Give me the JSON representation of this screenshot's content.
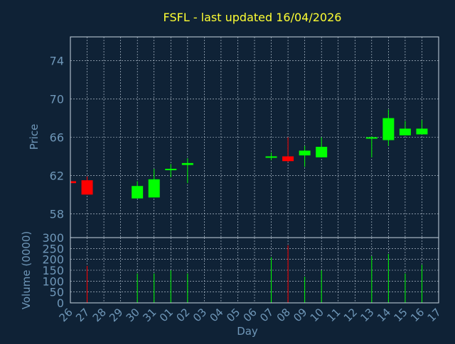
{
  "colors": {
    "background": "#0f2236",
    "frame": "#c9d6e3",
    "grid": "#c9d6e3",
    "title": "#ffff33",
    "axis_text": "#6f97b8",
    "up": "#00ff00",
    "down": "#ff0000"
  },
  "chart_data": {
    "type": "candlestick",
    "title": "FSFL - last updated 16/04/2026",
    "xlabel": "Day",
    "grid": true,
    "x": [
      "26",
      "27",
      "28",
      "29",
      "30",
      "31",
      "01",
      "02",
      "03",
      "04",
      "05",
      "06",
      "07",
      "08",
      "09",
      "10",
      "11",
      "12",
      "13",
      "14",
      "15",
      "16",
      "17"
    ],
    "price_panel": {
      "ylabel": "Price",
      "ylim": [
        55.5,
        76.5
      ],
      "yticks": [
        58,
        62,
        66,
        70,
        74
      ],
      "candles": [
        {
          "day": "26",
          "open": 61.4,
          "high": 61.4,
          "low": 61.2,
          "close": 61.2,
          "dir": "down"
        },
        {
          "day": "27",
          "open": 61.5,
          "high": 61.9,
          "low": 60.0,
          "close": 60.0,
          "dir": "down"
        },
        {
          "day": "30",
          "open": 59.6,
          "high": 61.4,
          "low": 59.6,
          "close": 60.9,
          "dir": "up"
        },
        {
          "day": "31",
          "open": 59.7,
          "high": 62.7,
          "low": 59.7,
          "close": 61.6,
          "dir": "up"
        },
        {
          "day": "01",
          "open": 62.6,
          "high": 63.2,
          "low": 61.8,
          "close": 62.7,
          "dir": "up"
        },
        {
          "day": "02",
          "open": 63.1,
          "high": 63.8,
          "low": 61.2,
          "close": 63.3,
          "dir": "up"
        },
        {
          "day": "07",
          "open": 63.9,
          "high": 64.4,
          "low": 63.6,
          "close": 64.0,
          "dir": "up"
        },
        {
          "day": "08",
          "open": 64.0,
          "high": 66.0,
          "low": 63.4,
          "close": 63.5,
          "dir": "down"
        },
        {
          "day": "09",
          "open": 64.1,
          "high": 65.1,
          "low": 62.9,
          "close": 64.6,
          "dir": "up"
        },
        {
          "day": "10",
          "open": 63.9,
          "high": 66.0,
          "low": 63.9,
          "close": 65.0,
          "dir": "up"
        },
        {
          "day": "13",
          "open": 65.9,
          "high": 66.1,
          "low": 63.9,
          "close": 66.0,
          "dir": "up"
        },
        {
          "day": "14",
          "open": 65.7,
          "high": 68.9,
          "low": 65.1,
          "close": 68.0,
          "dir": "up"
        },
        {
          "day": "15",
          "open": 66.2,
          "high": 67.7,
          "low": 66.2,
          "close": 66.9,
          "dir": "up"
        },
        {
          "day": "16",
          "open": 66.3,
          "high": 67.8,
          "low": 66.3,
          "close": 66.9,
          "dir": "up"
        }
      ]
    },
    "volume_panel": {
      "ylabel": "Volume (0000)",
      "ylim": [
        0,
        300
      ],
      "yticks": [
        0,
        50,
        100,
        150,
        200,
        250,
        300
      ],
      "bars": [
        {
          "day": "27",
          "value": 170,
          "dir": "down"
        },
        {
          "day": "30",
          "value": 135,
          "dir": "up"
        },
        {
          "day": "31",
          "value": 135,
          "dir": "up"
        },
        {
          "day": "01",
          "value": 150,
          "dir": "up"
        },
        {
          "day": "02",
          "value": 135,
          "dir": "up"
        },
        {
          "day": "07",
          "value": 210,
          "dir": "up"
        },
        {
          "day": "08",
          "value": 265,
          "dir": "down"
        },
        {
          "day": "09",
          "value": 120,
          "dir": "up"
        },
        {
          "day": "10",
          "value": 150,
          "dir": "up"
        },
        {
          "day": "13",
          "value": 215,
          "dir": "up"
        },
        {
          "day": "14",
          "value": 225,
          "dir": "up"
        },
        {
          "day": "15",
          "value": 135,
          "dir": "up"
        },
        {
          "day": "16",
          "value": 175,
          "dir": "up"
        }
      ]
    }
  }
}
